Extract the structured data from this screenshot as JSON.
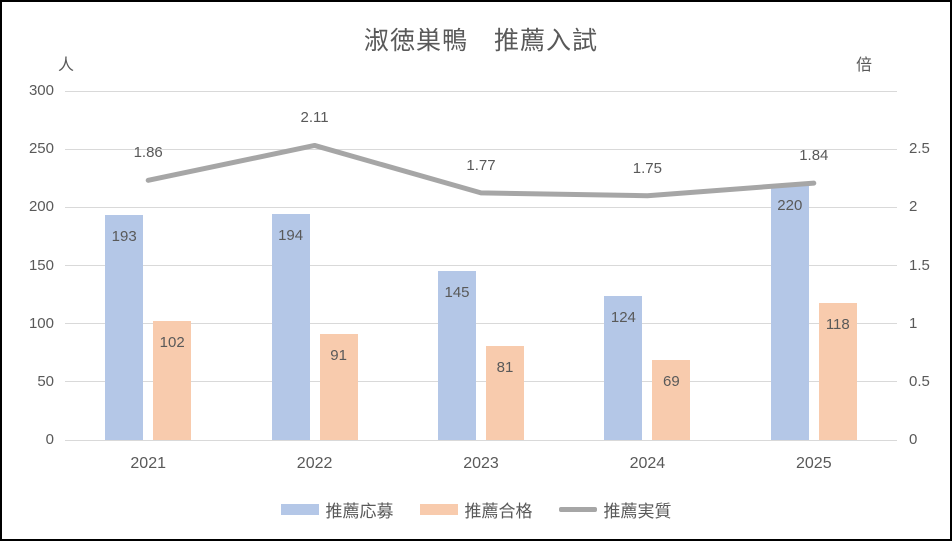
{
  "chart_data": {
    "type": "bar",
    "subtype": "bar-line-combo",
    "title": "淑徳巣鴨　推薦入試",
    "categories": [
      "2021",
      "2022",
      "2023",
      "2024",
      "2025"
    ],
    "series": [
      {
        "id": "suisen-oubo",
        "name": "推薦応募",
        "type": "bar",
        "axis": "left",
        "color": "#B4C7E7",
        "values": [
          193,
          194,
          145,
          124,
          220
        ],
        "labels": [
          "193",
          "194",
          "145",
          "124",
          "220"
        ]
      },
      {
        "id": "suisen-goukaku",
        "name": "推薦合格",
        "type": "bar",
        "axis": "left",
        "color": "#F8CBAD",
        "values": [
          102,
          91,
          81,
          69,
          118
        ],
        "labels": [
          "102",
          "91",
          "81",
          "69",
          "118"
        ]
      },
      {
        "id": "suisen-jisshitsu",
        "name": "推薦実質",
        "type": "line",
        "axis": "right",
        "color": "#A6A6A6",
        "values": [
          1.86,
          2.11,
          1.77,
          1.75,
          1.84
        ],
        "labels": [
          "1.86",
          "2.11",
          "1.77",
          "1.75",
          "1.84"
        ]
      }
    ],
    "left_axis": {
      "unit": "人",
      "min": 0,
      "max": 300,
      "step": 50,
      "ticks": [
        "0",
        "50",
        "100",
        "150",
        "200",
        "250",
        "300"
      ]
    },
    "right_axis": {
      "unit": "倍",
      "min": 0,
      "max": 2.5,
      "step": 0.5,
      "ticks": [
        "0",
        "0.5",
        "1",
        "1.5",
        "2",
        "2.5"
      ]
    },
    "grid": true,
    "legend_position": "bottom",
    "colors": {
      "text": "#595959",
      "gridline": "#D9D9D9",
      "background": "#FFFFFF",
      "frame_border": "#000000"
    }
  }
}
